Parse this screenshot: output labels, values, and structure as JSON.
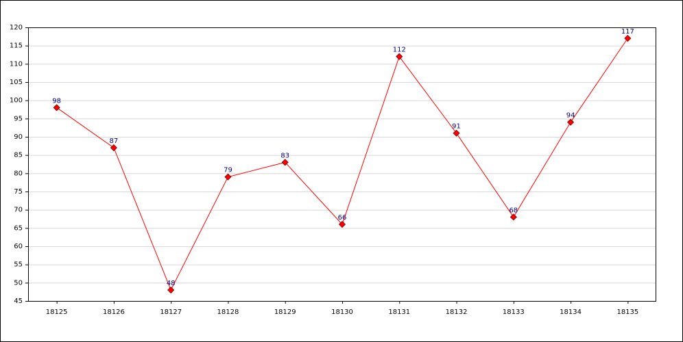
{
  "chart_data": {
    "type": "line",
    "x": [
      18125,
      18126,
      18127,
      18128,
      18129,
      18130,
      18131,
      18132,
      18133,
      18134,
      18135
    ],
    "values": [
      98,
      87,
      48,
      79,
      83,
      66,
      112,
      91,
      68,
      94,
      117
    ],
    "color": "#ff0000",
    "label_color": "#000080",
    "xlim": [
      18124.5,
      18135.5
    ],
    "xticks": [
      18125,
      18126,
      18127,
      18128,
      18129,
      18130,
      18131,
      18132,
      18133,
      18134,
      18135
    ],
    "ylim": [
      45,
      120
    ],
    "yticks": [
      45,
      50,
      55,
      60,
      65,
      70,
      75,
      80,
      85,
      90,
      95,
      100,
      105,
      110,
      115,
      120
    ],
    "grid": true,
    "data_labels": true
  }
}
